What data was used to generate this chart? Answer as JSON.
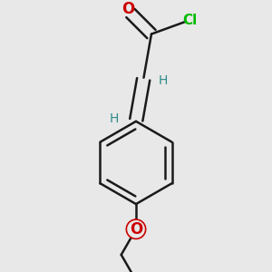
{
  "bg_color": "#e8e8e8",
  "bond_color": "#1a1a1a",
  "bond_width": 1.8,
  "O_color": "#cc0000",
  "Cl_color": "#00bb00",
  "H_color": "#2e8b8b",
  "font_size_atom": 10,
  "figsize": [
    3.0,
    3.0
  ],
  "dpi": 100,
  "xlim": [
    0.15,
    0.85
  ],
  "ylim": [
    0.05,
    0.95
  ]
}
